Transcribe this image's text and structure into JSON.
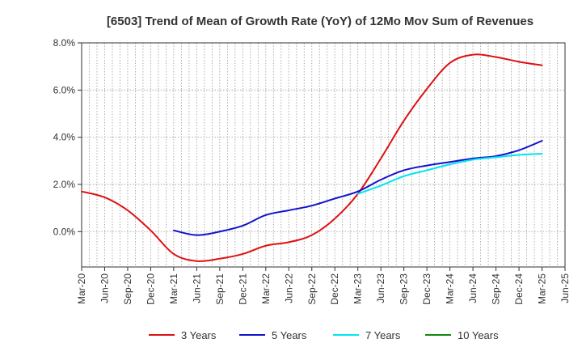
{
  "chart_data": {
    "type": "line",
    "title": "[6503]  Trend of Mean of Growth Rate (YoY) of 12Mo Mov Sum of Revenues",
    "xlabel": "",
    "ylabel": "",
    "ylim": [
      -1.5,
      8.0
    ],
    "yticks": [
      {
        "value": 0,
        "label": "0.0%"
      },
      {
        "value": 2,
        "label": "2.0%"
      },
      {
        "value": 4,
        "label": "4.0%"
      },
      {
        "value": 6,
        "label": "6.0%"
      },
      {
        "value": 8,
        "label": "8.0%"
      }
    ],
    "categories": [
      "Mar-20",
      "Jun-20",
      "Sep-20",
      "Dec-20",
      "Mar-21",
      "Jun-21",
      "Sep-21",
      "Dec-21",
      "Mar-22",
      "Jun-22",
      "Sep-22",
      "Dec-22",
      "Mar-23",
      "Jun-23",
      "Sep-23",
      "Dec-23",
      "Mar-24",
      "Jun-24",
      "Sep-24",
      "Dec-24",
      "Mar-25",
      "Jun-25"
    ],
    "grid": true,
    "legend_position": "bottom",
    "series": [
      {
        "name": "3 Years",
        "color": "#dd1111",
        "values": [
          1.7,
          1.45,
          0.9,
          0.05,
          -0.95,
          -1.25,
          -1.15,
          -0.95,
          -0.6,
          -0.45,
          -0.15,
          0.55,
          1.6,
          3.1,
          4.7,
          6.05,
          7.15,
          7.5,
          7.4,
          7.2,
          7.05,
          null
        ]
      },
      {
        "name": "5 Years",
        "color": "#1111cc",
        "values": [
          null,
          null,
          null,
          null,
          0.05,
          -0.15,
          0.0,
          0.25,
          0.7,
          0.9,
          1.1,
          1.4,
          1.7,
          2.2,
          2.6,
          2.8,
          2.95,
          3.1,
          3.2,
          3.45,
          3.85,
          null
        ]
      },
      {
        "name": "7 Years",
        "color": "#00e5ee",
        "values": [
          null,
          null,
          null,
          null,
          null,
          null,
          null,
          null,
          null,
          null,
          null,
          null,
          1.6,
          1.95,
          2.35,
          2.6,
          2.85,
          3.05,
          3.15,
          3.25,
          3.3,
          null
        ]
      },
      {
        "name": "10 Years",
        "color": "#118811",
        "values": [
          null,
          null,
          null,
          null,
          null,
          null,
          null,
          null,
          null,
          null,
          null,
          null,
          null,
          null,
          null,
          null,
          null,
          null,
          null,
          null,
          null,
          null
        ]
      }
    ]
  }
}
